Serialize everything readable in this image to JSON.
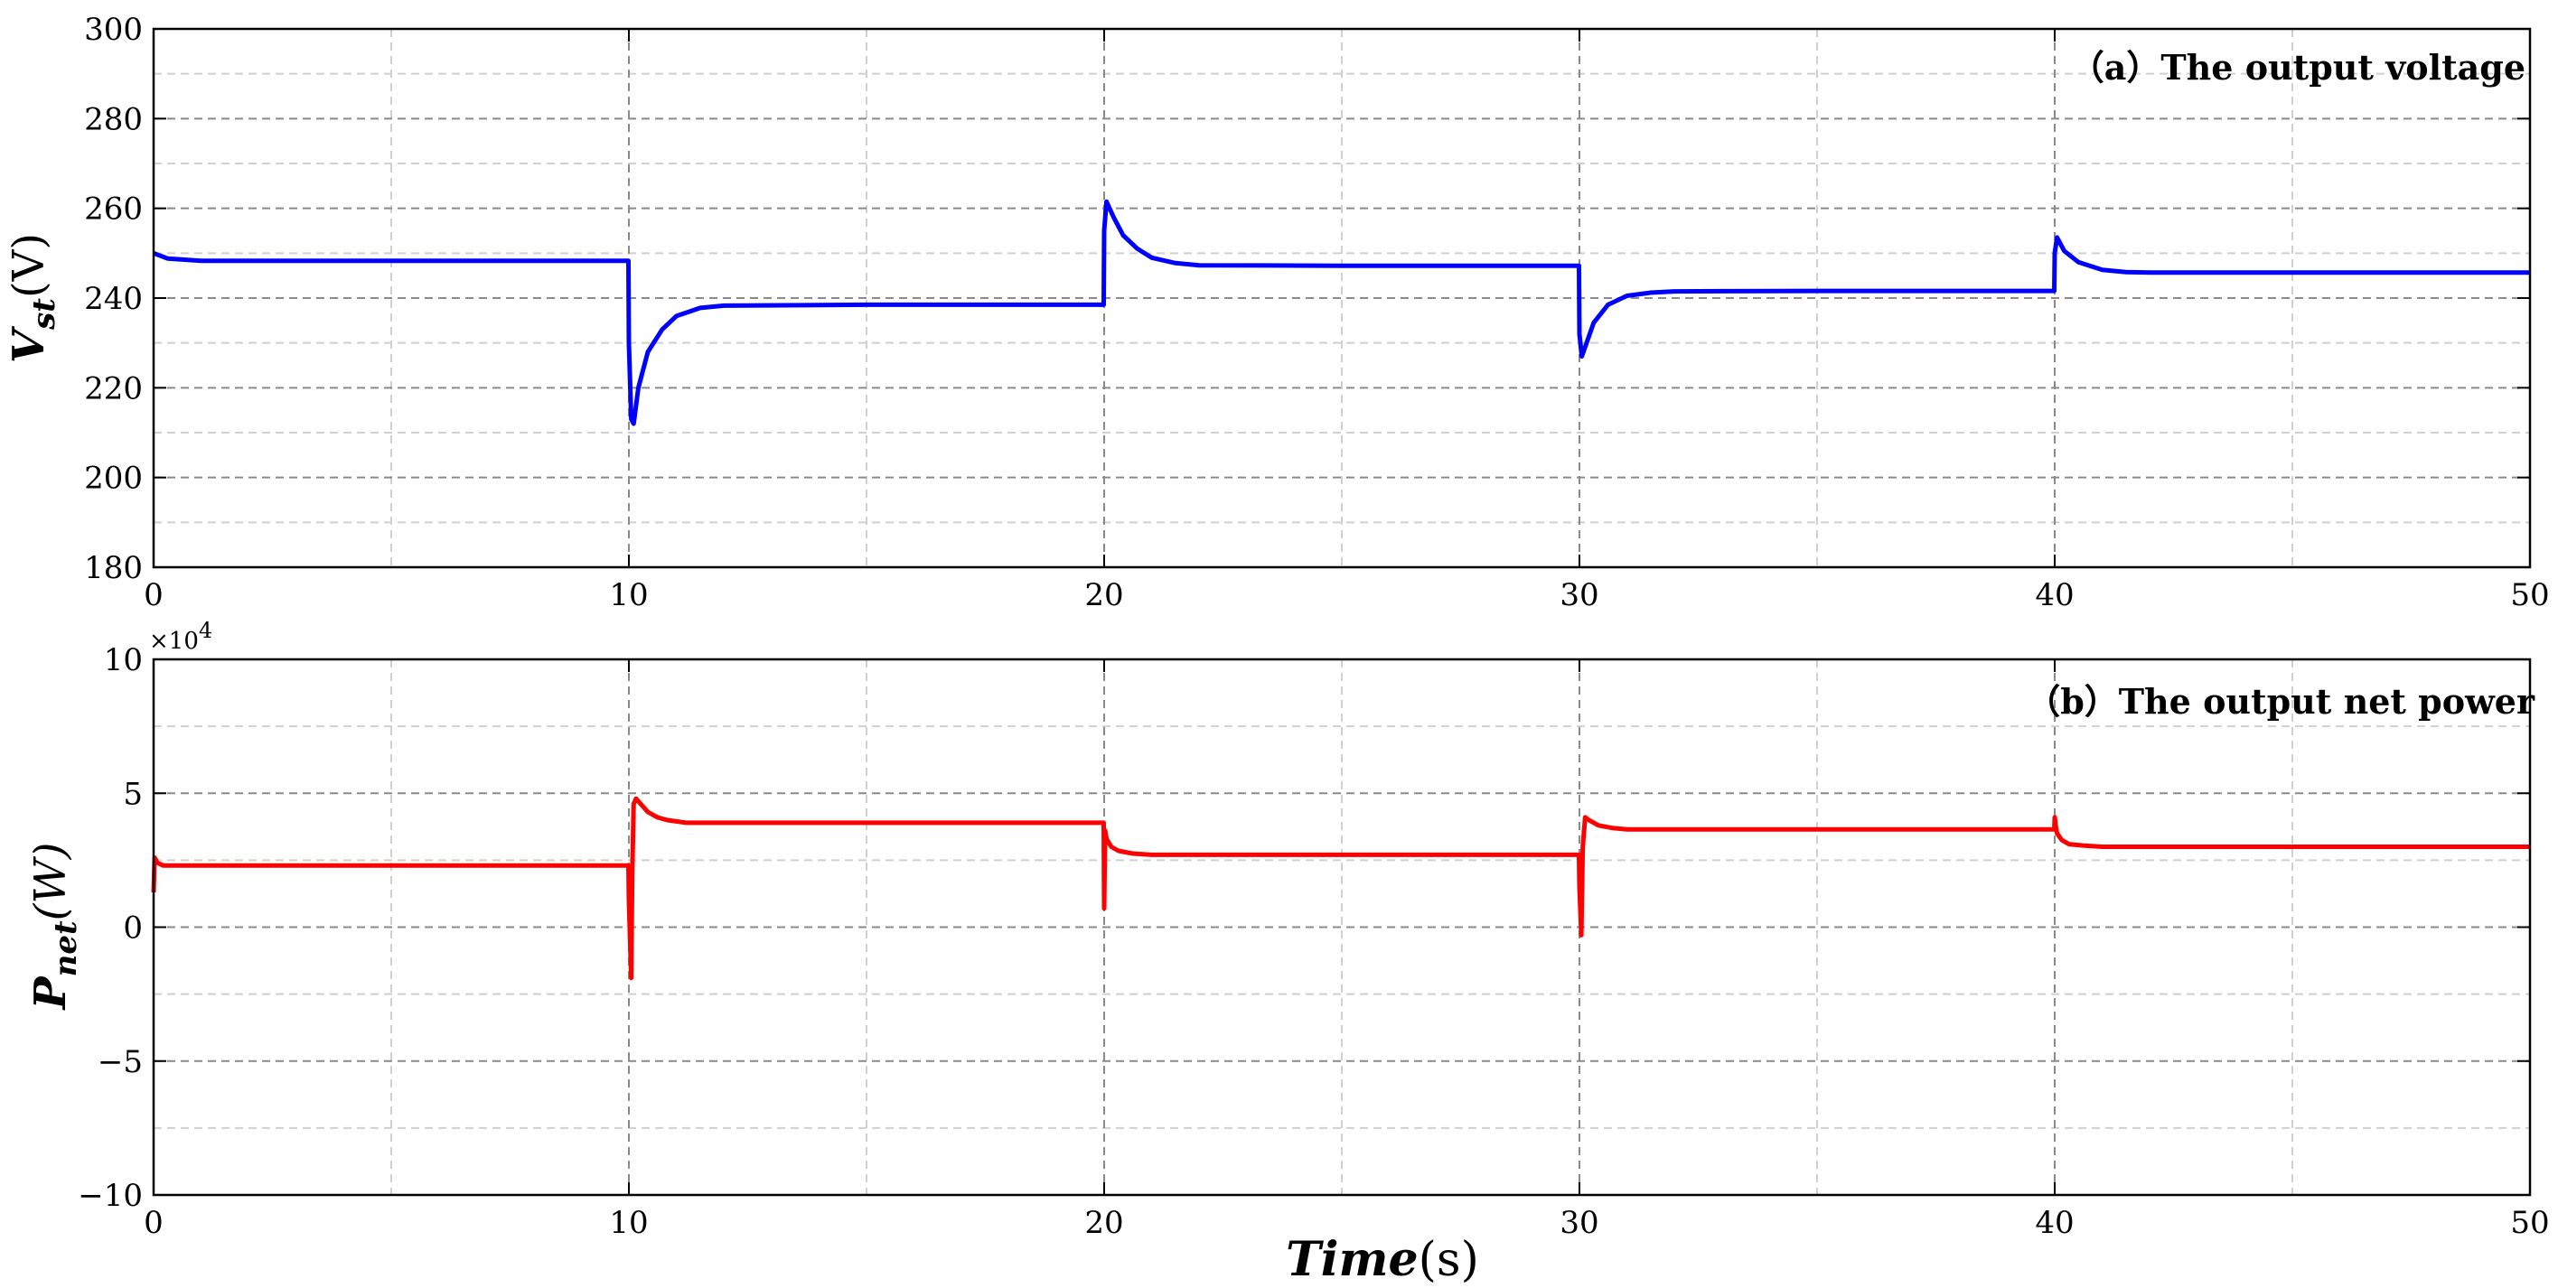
{
  "chart_data": [
    {
      "type": "line",
      "title": "（a）The output voltage",
      "ylabel": {
        "main": "V",
        "sub": "st",
        "unit": "(V)"
      },
      "xlim": [
        0,
        50
      ],
      "ylim": [
        180,
        300
      ],
      "xticks": [
        0,
        10,
        20,
        30,
        40,
        50
      ],
      "xtick_labels": [
        "0",
        "10",
        "20",
        "30",
        "40",
        "50"
      ],
      "yticks": [
        180,
        200,
        220,
        240,
        260,
        280,
        300
      ],
      "ytick_labels": [
        "180",
        "200",
        "220",
        "240",
        "260",
        "280",
        "300"
      ],
      "minor_grid_x": [
        5,
        15,
        25,
        35,
        45
      ],
      "minor_grid_y": [
        190,
        210,
        230,
        250,
        270,
        290
      ],
      "grid": true,
      "color": "#0000ff",
      "series": [
        {
          "x": [
            0,
            0.3,
            1,
            5,
            9.99,
            10.0,
            10.05,
            10.1,
            10.2,
            10.4,
            10.7,
            11,
            11.5,
            12,
            15,
            19.99,
            20.0,
            20.05,
            20.2,
            20.4,
            20.7,
            21,
            21.5,
            22,
            25,
            29.99,
            30.0,
            30.05,
            30.15,
            30.3,
            30.6,
            31,
            31.5,
            32,
            35,
            39.99,
            40.0,
            40.05,
            40.2,
            40.5,
            41,
            41.5,
            42,
            45,
            50
          ],
          "y": [
            250,
            248.8,
            248.3,
            248.3,
            248.3,
            230,
            213,
            212,
            220,
            228,
            233,
            236,
            237.8,
            238.3,
            238.5,
            238.5,
            255,
            261.5,
            258,
            254,
            251,
            249,
            247.8,
            247.3,
            247.2,
            247.2,
            232,
            227,
            230,
            234.5,
            238.5,
            240.5,
            241.2,
            241.5,
            241.6,
            241.6,
            250,
            253.5,
            250.5,
            248,
            246.3,
            245.8,
            245.7,
            245.7,
            245.7
          ]
        }
      ]
    },
    {
      "type": "line",
      "title": "（b）The output net power",
      "ylabel": {
        "main": "P",
        "sub": "net",
        "unit": "(W)"
      },
      "y_exponent": "×10",
      "y_exponent_power": "4",
      "xlim": [
        0,
        50
      ],
      "ylim": [
        -10,
        10
      ],
      "xticks": [
        0,
        10,
        20,
        30,
        40,
        50
      ],
      "xtick_labels": [
        "0",
        "10",
        "20",
        "30",
        "40",
        "50"
      ],
      "yticks": [
        -10,
        -5,
        0,
        5,
        10
      ],
      "ytick_labels": [
        "−10",
        "−5",
        "0",
        "5",
        "10"
      ],
      "minor_grid_x": [
        5,
        15,
        25,
        35,
        45
      ],
      "minor_grid_y": [
        -7.5,
        -2.5,
        2.5,
        7.5
      ],
      "grid": true,
      "color": "#ff0000",
      "series": [
        {
          "x": [
            0,
            0.02,
            0.08,
            0.2,
            5,
            9.99,
            10.0,
            10.05,
            10.07,
            10.1,
            10.15,
            10.25,
            10.4,
            10.6,
            10.8,
            11.2,
            15,
            19.99,
            20.0,
            20.02,
            20.05,
            20.15,
            20.3,
            20.6,
            21,
            25,
            29.99,
            30.0,
            30.04,
            30.07,
            30.12,
            30.2,
            30.4,
            30.7,
            31,
            35,
            39.99,
            40.0,
            40.02,
            40.05,
            40.15,
            40.3,
            40.6,
            41,
            45,
            50
          ],
          "y": [
            1.3,
            2.6,
            2.4,
            2.3,
            2.3,
            2.3,
            1.0,
            -1.9,
            2.0,
            4.6,
            4.8,
            4.6,
            4.3,
            4.1,
            4.0,
            3.9,
            3.9,
            3.9,
            0.7,
            3.6,
            3.3,
            3.0,
            2.85,
            2.75,
            2.7,
            2.7,
            2.7,
            1.5,
            -0.3,
            3.0,
            4.1,
            4.0,
            3.8,
            3.7,
            3.65,
            3.65,
            3.65,
            4.1,
            3.8,
            3.5,
            3.25,
            3.1,
            3.05,
            3.0,
            3.0,
            3.0
          ]
        }
      ]
    }
  ],
  "xlabel": {
    "main": "Time",
    "unit": "(s)"
  }
}
